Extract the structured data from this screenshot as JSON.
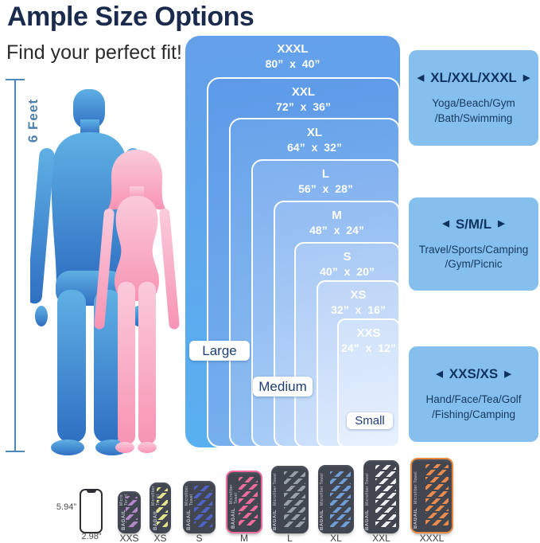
{
  "page": {
    "title": "Ample Size Options",
    "subtitle": "Find your perfect fit!",
    "height_label": "6 Feet"
  },
  "size_chart": {
    "rects": [
      {
        "name": "XXXL",
        "dims": "80” x 40”"
      },
      {
        "name": "XXL",
        "dims": "72” x 36”"
      },
      {
        "name": "XL",
        "dims": "64” x 32”"
      },
      {
        "name": "L",
        "dims": "56” x 28”"
      },
      {
        "name": "M",
        "dims": "48” x 24”"
      },
      {
        "name": "S",
        "dims": "40” x 20”"
      },
      {
        "name": "XS",
        "dims": "32” x 16”"
      },
      {
        "name": "XXS",
        "dims": "24” x 12”"
      }
    ],
    "group_labels": [
      {
        "label": "Large"
      },
      {
        "label": "Medium"
      },
      {
        "label": "Small"
      }
    ]
  },
  "arrows": {
    "left": "◀",
    "right": "▶"
  },
  "info_boxes": [
    {
      "heading": "XL/XXL/XXXL",
      "uses": "Yoga/Beach/Gym\n/Bath/Swimming"
    },
    {
      "heading": "S/M/L",
      "uses": "Travel/Sports/Camping\n/Gym/Picnic"
    },
    {
      "heading": "XXS/XS",
      "uses": "Hand/Face/Tea/Golf\n/Fishing/Camping"
    }
  ],
  "phone": {
    "height_label": "5.94”",
    "width_label": "2.98”"
  },
  "brand": {
    "name": "BAGAIL",
    "product": "Microfiber Towel"
  },
  "products": [
    {
      "label": "XXS",
      "stripe": "#b387c9"
    },
    {
      "label": "XS",
      "stripe": "#e3e38c"
    },
    {
      "label": "S",
      "stripe": "#4f63c9"
    },
    {
      "label": "M",
      "stripe": "#f26b9d",
      "rim": "#ef6a9d"
    },
    {
      "label": "L",
      "stripe": "#9aa0aa"
    },
    {
      "label": "XL",
      "stripe": "#6f9ed9"
    },
    {
      "label": "XXL",
      "stripe": "#eef0f4"
    },
    {
      "label": "XXXL",
      "stripe": "#ea8a4b",
      "rim": "#e8893f"
    }
  ],
  "colors": {
    "title": "#1b2b4d",
    "info_box_bg": "#85bfee",
    "rect_outer_blue": "#649fe9",
    "rect_inner_blue": "#e8f1fe",
    "man": "#3f83cd",
    "woman": "#f8a3bf",
    "measure_line": "#4d88bd",
    "pouch_body": "#424651"
  }
}
